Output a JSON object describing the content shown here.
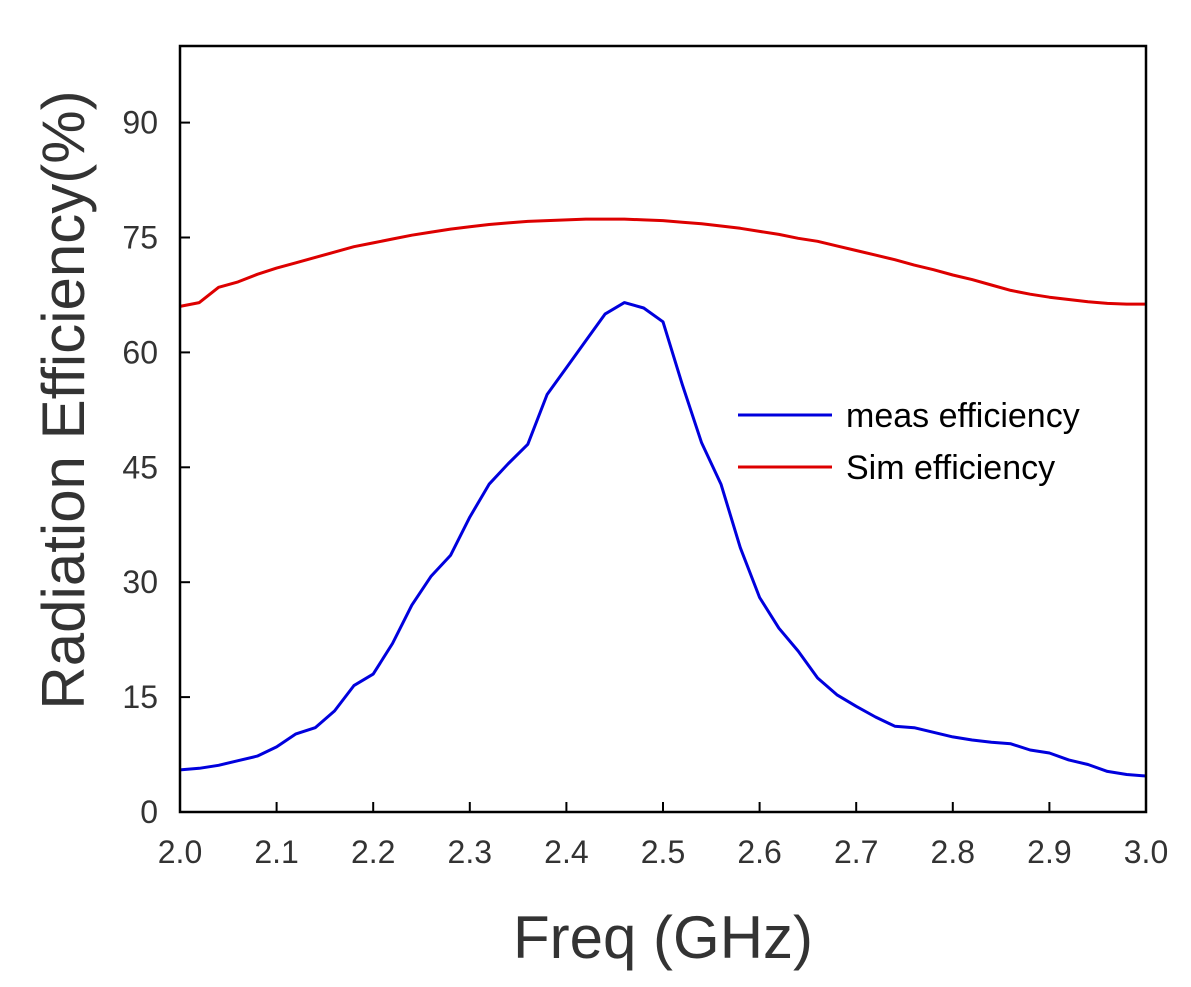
{
  "chart_data": {
    "type": "line",
    "title": "",
    "xlabel": "Freq (GHz)",
    "ylabel": "Radiation Efficiency(%)",
    "xlim": [
      2.0,
      3.0
    ],
    "ylim": [
      0,
      100
    ],
    "xticks": [
      2.0,
      2.1,
      2.2,
      2.3,
      2.4,
      2.5,
      2.6,
      2.7,
      2.8,
      2.9,
      3.0
    ],
    "xtick_labels": [
      "2.0",
      "2.1",
      "2.2",
      "2.3",
      "2.4",
      "2.5",
      "2.6",
      "2.7",
      "2.8",
      "2.9",
      "3.0"
    ],
    "yticks": [
      0,
      15,
      30,
      45,
      60,
      75,
      90
    ],
    "ytick_labels": [
      "0",
      "15",
      "30",
      "45",
      "60",
      "75",
      "90"
    ],
    "grid": false,
    "legend_position": "right-middle",
    "series": [
      {
        "name": "meas efficiency",
        "color": "#0000dd",
        "x": [
          2.0,
          2.02,
          2.04,
          2.06,
          2.08,
          2.1,
          2.12,
          2.14,
          2.16,
          2.18,
          2.2,
          2.22,
          2.24,
          2.26,
          2.28,
          2.3,
          2.32,
          2.34,
          2.36,
          2.38,
          2.4,
          2.42,
          2.44,
          2.46,
          2.48,
          2.5,
          2.52,
          2.54,
          2.56,
          2.58,
          2.6,
          2.62,
          2.64,
          2.66,
          2.68,
          2.7,
          2.72,
          2.74,
          2.76,
          2.78,
          2.8,
          2.82,
          2.84,
          2.86,
          2.88,
          2.9,
          2.92,
          2.94,
          2.96,
          2.98,
          3.0
        ],
        "y": [
          5.5,
          5.7,
          6.1,
          6.7,
          7.3,
          8.5,
          10.2,
          11.0,
          13.2,
          16.5,
          18.0,
          22.0,
          27.0,
          30.8,
          33.5,
          38.5,
          42.8,
          45.5,
          48.0,
          54.5,
          58.0,
          61.5,
          65.0,
          66.5,
          65.8,
          64.0,
          55.8,
          48.2,
          42.8,
          34.5,
          28.0,
          24.0,
          21.0,
          17.5,
          15.3,
          13.8,
          12.4,
          11.2,
          11.0,
          10.4,
          9.8,
          9.4,
          9.1,
          8.9,
          8.1,
          7.7,
          6.8,
          6.2,
          5.3,
          4.9,
          4.7
        ]
      },
      {
        "name": "Sim efficiency",
        "color": "#dd0000",
        "x": [
          2.0,
          2.02,
          2.04,
          2.06,
          2.08,
          2.1,
          2.12,
          2.14,
          2.16,
          2.18,
          2.2,
          2.22,
          2.24,
          2.26,
          2.28,
          2.3,
          2.32,
          2.34,
          2.36,
          2.38,
          2.4,
          2.42,
          2.44,
          2.46,
          2.48,
          2.5,
          2.52,
          2.54,
          2.56,
          2.58,
          2.6,
          2.62,
          2.64,
          2.66,
          2.68,
          2.7,
          2.72,
          2.74,
          2.76,
          2.78,
          2.8,
          2.82,
          2.84,
          2.86,
          2.88,
          2.9,
          2.92,
          2.94,
          2.96,
          2.98,
          3.0
        ],
        "y": [
          66.0,
          66.5,
          68.5,
          69.2,
          70.2,
          71.0,
          71.7,
          72.4,
          73.1,
          73.8,
          74.3,
          74.8,
          75.3,
          75.7,
          76.1,
          76.4,
          76.7,
          76.9,
          77.1,
          77.2,
          77.3,
          77.4,
          77.4,
          77.4,
          77.3,
          77.2,
          77.0,
          76.8,
          76.5,
          76.2,
          75.8,
          75.4,
          74.9,
          74.5,
          73.9,
          73.3,
          72.7,
          72.1,
          71.4,
          70.8,
          70.1,
          69.5,
          68.8,
          68.1,
          67.6,
          67.2,
          66.9,
          66.6,
          66.4,
          66.3,
          66.3
        ]
      }
    ]
  }
}
